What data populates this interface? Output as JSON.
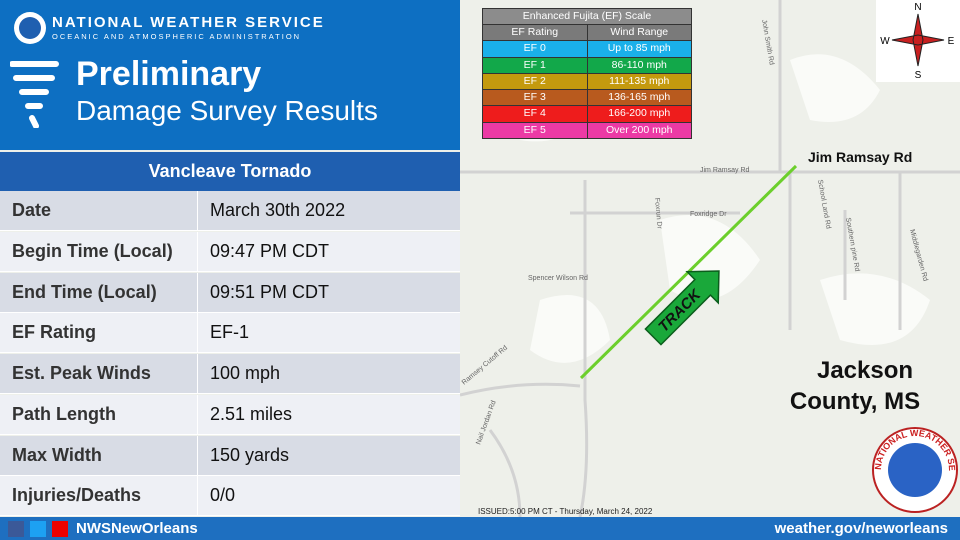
{
  "header": {
    "agency": "NATIONAL WEATHER SERVICE",
    "sub_agency": "OCEANIC AND ATMOSPHERIC ADMINISTRATION",
    "title": "Preliminary",
    "subtitle": "Damage Survey Results"
  },
  "table": {
    "title": "Vancleave Tornado",
    "rows": [
      [
        "Date",
        "March 30th 2022"
      ],
      [
        "Begin Time (Local)",
        "09:47 PM CDT"
      ],
      [
        "End Time (Local)",
        "09:51 PM CDT"
      ],
      [
        "EF Rating",
        "EF-1"
      ],
      [
        "Est. Peak Winds",
        "100 mph"
      ],
      [
        "Path Length",
        "2.51 miles"
      ],
      [
        "Max Width",
        "150 yards"
      ],
      [
        "Injuries/Deaths",
        "0/0"
      ]
    ]
  },
  "ef_scale": {
    "title": "Enhanced Fujita (EF) Scale",
    "columns": [
      "EF Rating",
      "Wind Range"
    ],
    "rows": [
      {
        "rating": "EF 0",
        "range": "Up to 85 mph",
        "color": "#1ab0ea"
      },
      {
        "rating": "EF 1",
        "range": "86-110 mph",
        "color": "#12a84a"
      },
      {
        "rating": "EF 2",
        "range": "111-135 mph",
        "color": "#c49a0e"
      },
      {
        "rating": "EF 3",
        "range": "136-165 mph",
        "color": "#b85a1e"
      },
      {
        "rating": "EF 4",
        "range": "166-200 mph",
        "color": "#ee1c1c"
      },
      {
        "rating": "EF 5",
        "range": "Over 200 mph",
        "color": "#ec3aa5"
      }
    ]
  },
  "map": {
    "road_label": "Jim Ramsay Rd",
    "track": "TRACK",
    "county": [
      "Jackson",
      "County, MS"
    ],
    "issued": "ISSUED:5:00 PM CT - Thursday, March 24, 2022",
    "roads": [
      "Jim Ramsay Rd",
      "Foxridge Dr",
      "Spencer Wilson Rd",
      "Ramsey Cutoff Rd",
      "Nail Jordan Rd",
      "School Land Rd",
      "Southern pine Rd",
      "Middlegarden Rd",
      "John Smith Rd",
      "Foxrun Dr"
    ],
    "compass": [
      "N",
      "E",
      "S",
      "W"
    ],
    "logo_text": "NATIONAL WEATHER SERVICE"
  },
  "footer": {
    "social": "NWSNewOrleans",
    "url": "weather.gov/neworleans"
  }
}
